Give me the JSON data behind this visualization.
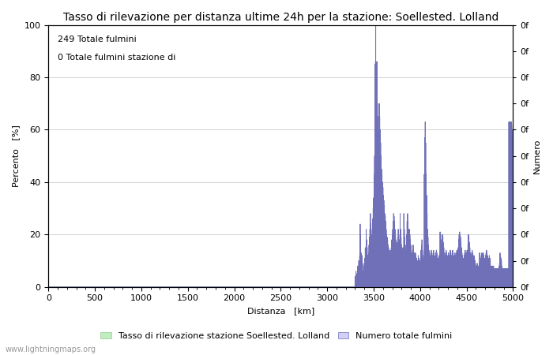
{
  "title": "Tasso di rilevazione per distanza ultime 24h per la stazione: Soellested. Lolland",
  "xlabel": "Distanza   [km]",
  "ylabel_left": "Percento   [%]",
  "ylabel_right": "Numero",
  "annotation_line1": "249 Totale fulmini",
  "annotation_line2": "0 Totale fulmini stazione di",
  "xlim": [
    0,
    5000
  ],
  "ylim": [
    0,
    100
  ],
  "xticks": [
    0,
    500,
    1000,
    1500,
    2000,
    2500,
    3000,
    3500,
    4000,
    4500,
    5000
  ],
  "yticks_left": [
    0,
    20,
    40,
    60,
    80,
    100
  ],
  "right_ytick_labels": [
    "0f",
    "0f",
    "0f",
    "0f",
    "0f",
    "0f",
    "0f",
    "0f",
    "0f",
    "0f",
    "0f"
  ],
  "fill_color_blue": "#d0d0f8",
  "line_color_blue": "#7070b8",
  "fill_color_green": "#c0ecc0",
  "watermark": "www.lightningmaps.org",
  "legend_label_green": "Tasso di rilevazione stazione Soellested. Lolland",
  "legend_label_blue": "Numero totale fulmini",
  "background_color": "#ffffff",
  "grid_color": "#c0c0c0",
  "title_fontsize": 10,
  "axis_fontsize": 8,
  "tick_fontsize": 8
}
